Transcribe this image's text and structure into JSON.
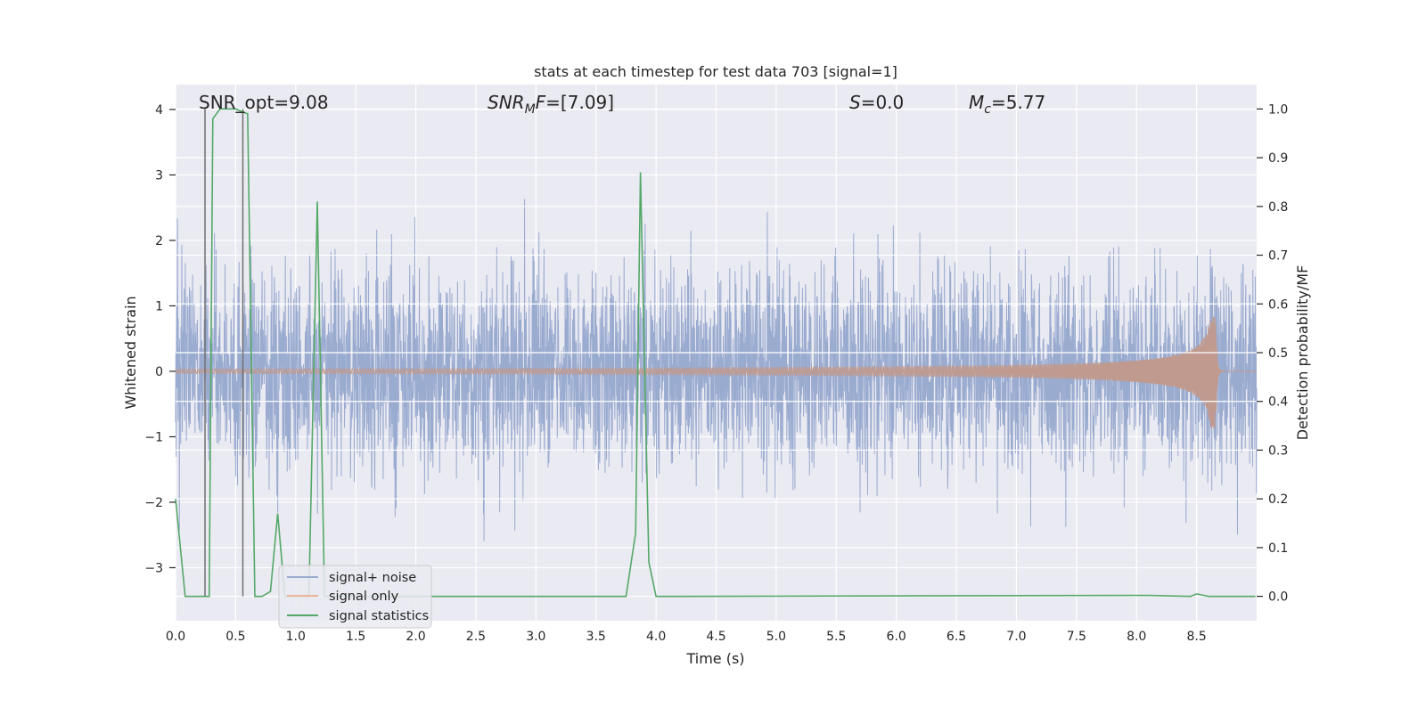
{
  "chart_data": {
    "type": "line",
    "title": "stats at each timestep for test data 703 [signal=1]",
    "xlabel": "Time (s)",
    "ylabel": "Whitened strain",
    "ylabel_right": "Detection probability/MF",
    "xlim": [
      0,
      9.0
    ],
    "ylim": [
      -3.81,
      4.38
    ],
    "ylim_right": [
      -0.05,
      1.05
    ],
    "grid": true,
    "xticks": [
      "0.0",
      "0.5",
      "1.0",
      "1.5",
      "2.0",
      "2.5",
      "3.0",
      "3.5",
      "4.0",
      "4.5",
      "5.0",
      "5.5",
      "6.0",
      "6.5",
      "7.0",
      "7.5",
      "8.0",
      "8.5"
    ],
    "yticks": [
      "−3",
      "−2",
      "−1",
      "0",
      "1",
      "2",
      "3",
      "4"
    ],
    "yticks_right": [
      "0.0",
      "0.1",
      "0.2",
      "0.3",
      "0.4",
      "0.5",
      "0.6",
      "0.7",
      "0.8",
      "0.9",
      "1.0"
    ],
    "series": [
      {
        "name": "signal+ noise",
        "axis": "left",
        "color": "#4c72b0",
        "kind": "whitened noise plus signal",
        "std": 0.75,
        "n_samples": 4000
      },
      {
        "name": "signal only",
        "axis": "left",
        "color": "#dd8452",
        "kind": "chirp",
        "merger_time": 8.66,
        "peak_amplitude": 0.88
      },
      {
        "name": "signal statistics",
        "axis": "right",
        "color": "#55a868",
        "x": [
          0,
          0.08,
          0.28,
          0.31,
          0.37,
          0.5,
          0.6,
          0.66,
          0.72,
          0.79,
          0.85,
          0.91,
          1.11,
          1.18,
          1.24,
          3.75,
          3.83,
          3.87,
          3.94,
          4.0,
          4.2,
          8.1,
          8.45,
          8.5,
          8.6,
          8.99
        ],
        "y": [
          0.2,
          0.0,
          0.0,
          0.98,
          1.0,
          1.0,
          0.99,
          0.0,
          0.0,
          0.01,
          0.17,
          0.0,
          0.0,
          0.81,
          0.0,
          0.0,
          0.13,
          0.87,
          0.07,
          0.0,
          0.0,
          0.002,
          0.0,
          0.005,
          0.0,
          0.0
        ]
      }
    ],
    "vlines": {
      "x": [
        0.245,
        0.56
      ],
      "ymin": 0.0,
      "ymax": 1.0,
      "axis": "right",
      "color": "#707070"
    },
    "annotations": {
      "snr_opt": "SNR_opt=9.08",
      "snr_mf_main": "SNR",
      "snr_mf_sub": "M",
      "snr_mf_f": "F",
      "snr_mf_value": "=[7.09]",
      "s_main": "S",
      "s_value": "=0.0",
      "mc_main": "M",
      "mc_sub": "c",
      "mc_value": "=5.77"
    },
    "legend": {
      "location": "lower left",
      "entries": [
        "signal+ noise",
        "signal only",
        "signal statistics"
      ]
    }
  }
}
